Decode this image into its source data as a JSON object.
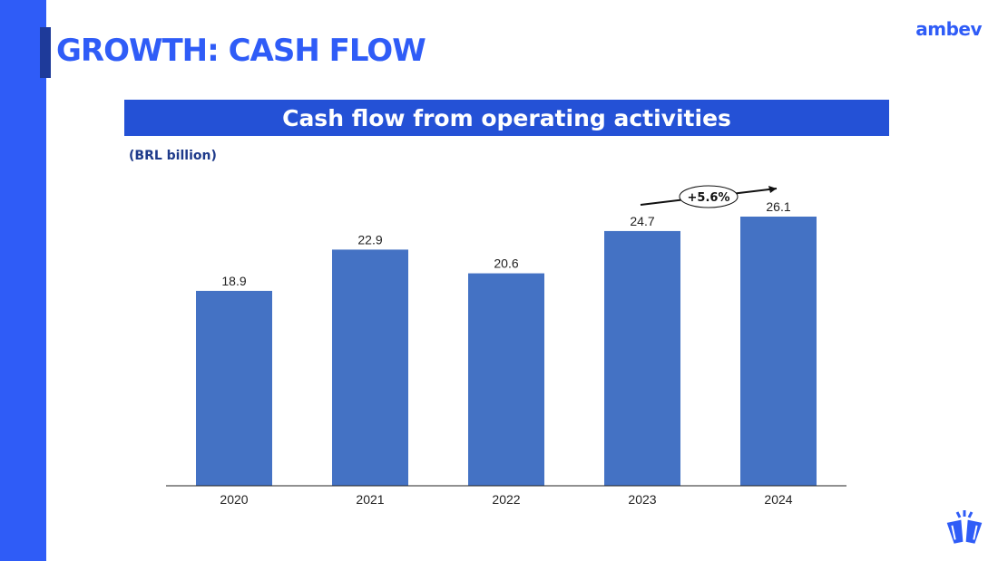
{
  "page": {
    "title": "GROWTH: CASH FLOW",
    "logo_text": "ambev",
    "brand_color": "#2f5cf7",
    "accent_color": "#1e3a9a",
    "icon": "cheers-cups-icon"
  },
  "chart_data": {
    "type": "bar",
    "title": "Cash flow from operating activities",
    "subtitle": "(BRL billion)",
    "categories": [
      "2020",
      "2021",
      "2022",
      "2023",
      "2024"
    ],
    "values": [
      18.9,
      22.9,
      20.6,
      24.7,
      26.1
    ],
    "value_labels": [
      "18.9",
      "22.9",
      "20.6",
      "24.7",
      "26.1"
    ],
    "ylim": [
      0,
      26.1
    ],
    "bar_color": "#4472c4",
    "grid": false,
    "legend": "none",
    "annotation": {
      "text": "+5.6%",
      "from_category": "2023",
      "to_category": "2024"
    }
  }
}
